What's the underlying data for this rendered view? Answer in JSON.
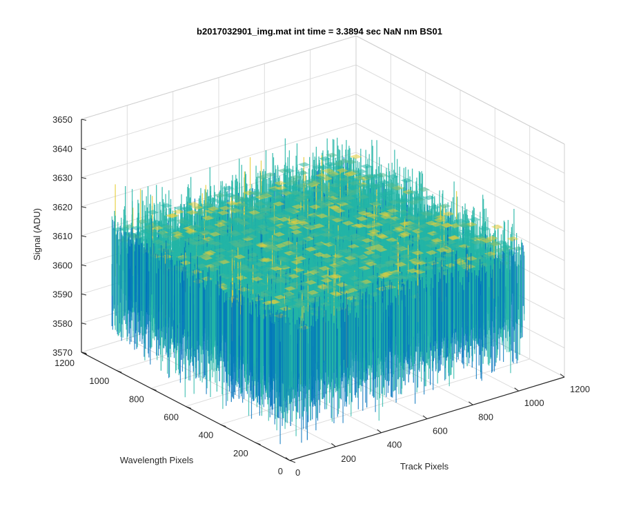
{
  "chart_data": {
    "type": "surface",
    "title": "b2017032901_img.mat int time = 3.3894 sec  NaN nm BS01",
    "xlabel": "Track Pixels",
    "ylabel": "Wavelength Pixels",
    "zlabel": "Signal (ADU)",
    "xlim": [
      0,
      1200
    ],
    "ylim": [
      0,
      1200
    ],
    "zlim": [
      3570,
      3650
    ],
    "x_ticks": [
      "0",
      "200",
      "400",
      "600",
      "800",
      "1000",
      "1200"
    ],
    "y_ticks": [
      "0",
      "200",
      "400",
      "600",
      "800",
      "1000",
      "1200"
    ],
    "z_ticks": [
      "3570",
      "3580",
      "3590",
      "3600",
      "3610",
      "3620",
      "3630",
      "3640",
      "3650"
    ],
    "surface": {
      "x_range": [
        0,
        1024
      ],
      "y_range": [
        0,
        1024
      ],
      "mean_signal": 3605,
      "noise_low": 3580,
      "noise_high": 3630
    },
    "grid": true,
    "colormap": "parula",
    "colors": {
      "low": "#0072BD",
      "mid": "#23B5A6",
      "high": "#E6CE3A",
      "axis": "#262626",
      "grid": "#DCDCDC"
    }
  }
}
